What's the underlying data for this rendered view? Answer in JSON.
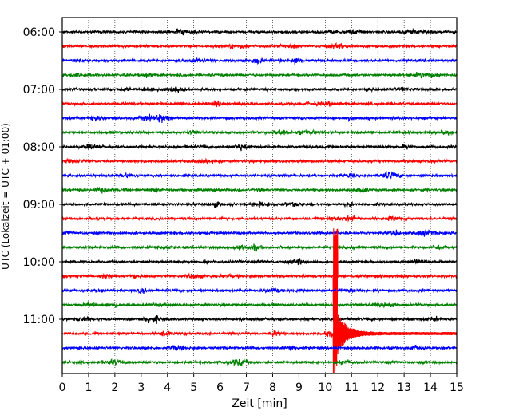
{
  "chart_data": {
    "type": "line",
    "title": "",
    "xlabel": "Zeit  [min]",
    "ylabel": "UTC (Lokalzeit = UTC + 01:00)",
    "xlim": [
      0,
      15
    ],
    "x_ticks": [
      0,
      1,
      2,
      3,
      4,
      5,
      6,
      7,
      8,
      9,
      10,
      11,
      12,
      13,
      14,
      15
    ],
    "y_ticks": [
      "06:00",
      "07:00",
      "08:00",
      "09:00",
      "10:00",
      "11:00"
    ],
    "grid": "vertical dotted",
    "trace_interval_minutes": 15,
    "trace_colors": [
      "#000000",
      "#ff0000",
      "#0000ff",
      "#008000"
    ],
    "traces": [
      {
        "start": "06:00",
        "color": "#000000"
      },
      {
        "start": "06:15",
        "color": "#ff0000"
      },
      {
        "start": "06:30",
        "color": "#0000ff"
      },
      {
        "start": "06:45",
        "color": "#008000"
      },
      {
        "start": "07:00",
        "color": "#000000"
      },
      {
        "start": "07:15",
        "color": "#ff0000"
      },
      {
        "start": "07:30",
        "color": "#0000ff"
      },
      {
        "start": "07:45",
        "color": "#008000"
      },
      {
        "start": "08:00",
        "color": "#000000"
      },
      {
        "start": "08:15",
        "color": "#ff0000"
      },
      {
        "start": "08:30",
        "color": "#0000ff"
      },
      {
        "start": "08:45",
        "color": "#008000"
      },
      {
        "start": "09:00",
        "color": "#000000"
      },
      {
        "start": "09:15",
        "color": "#ff0000"
      },
      {
        "start": "09:30",
        "color": "#0000ff"
      },
      {
        "start": "09:45",
        "color": "#008000"
      },
      {
        "start": "10:00",
        "color": "#000000"
      },
      {
        "start": "10:15",
        "color": "#ff0000"
      },
      {
        "start": "10:30",
        "color": "#0000ff"
      },
      {
        "start": "10:45",
        "color": "#008000"
      },
      {
        "start": "11:00",
        "color": "#000000"
      },
      {
        "start": "11:15",
        "color": "#ff0000"
      },
      {
        "start": "11:30",
        "color": "#0000ff"
      },
      {
        "start": "11:45",
        "color": "#008000"
      }
    ],
    "events": [
      {
        "trace_start": "10:15",
        "x_min": 10.35,
        "shape": "large spike"
      },
      {
        "trace_start": "11:15",
        "x_min": 10.35,
        "shape": "large spike with coda"
      }
    ]
  }
}
